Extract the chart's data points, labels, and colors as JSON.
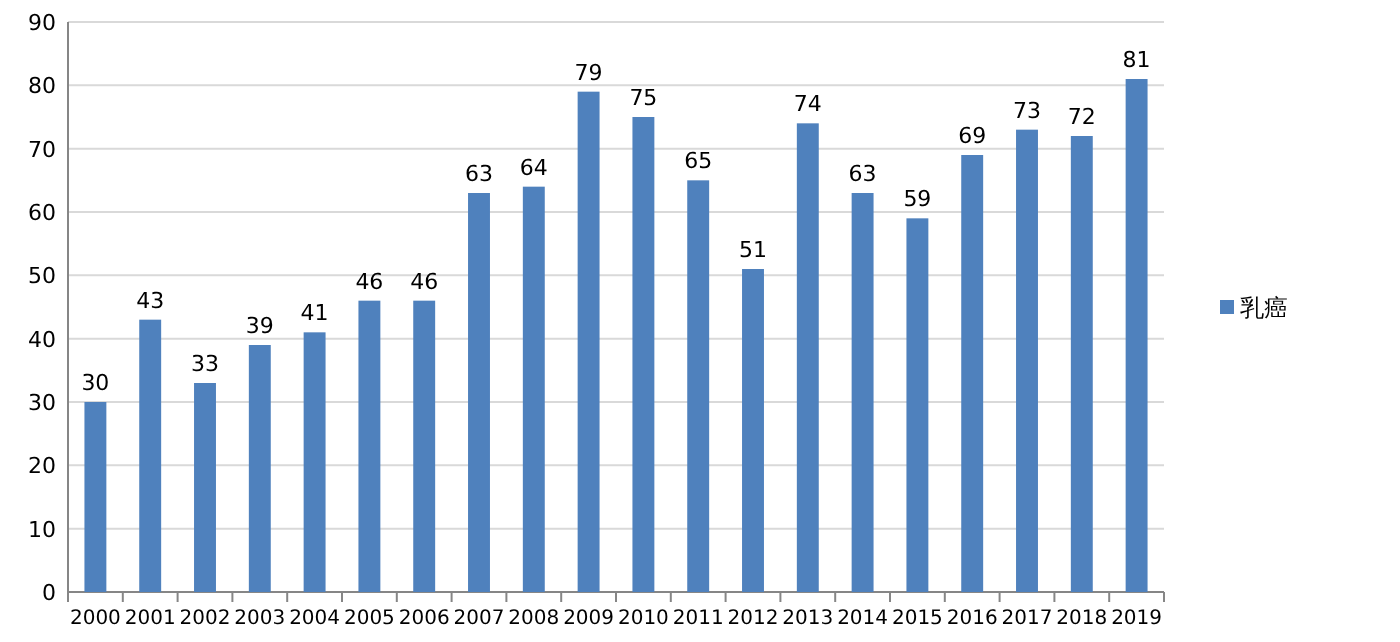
{
  "chart_data": {
    "type": "bar",
    "categories": [
      "2000",
      "2001",
      "2002",
      "2003",
      "2004",
      "2005",
      "2006",
      "2007",
      "2008",
      "2009",
      "2010",
      "2011",
      "2012",
      "2013",
      "2014",
      "2015",
      "2016",
      "2017",
      "2018",
      "2019"
    ],
    "series": [
      {
        "name": "乳癌",
        "color": "#4f81bd",
        "values": [
          30,
          43,
          33,
          39,
          41,
          46,
          46,
          63,
          64,
          79,
          75,
          65,
          51,
          74,
          63,
          59,
          69,
          73,
          72,
          81
        ]
      }
    ],
    "ylim": [
      0,
      90
    ],
    "yticks": [
      0,
      10,
      20,
      30,
      40,
      50,
      60,
      70,
      80,
      90
    ],
    "grid": "y",
    "legend": "right",
    "data_labels": true
  }
}
